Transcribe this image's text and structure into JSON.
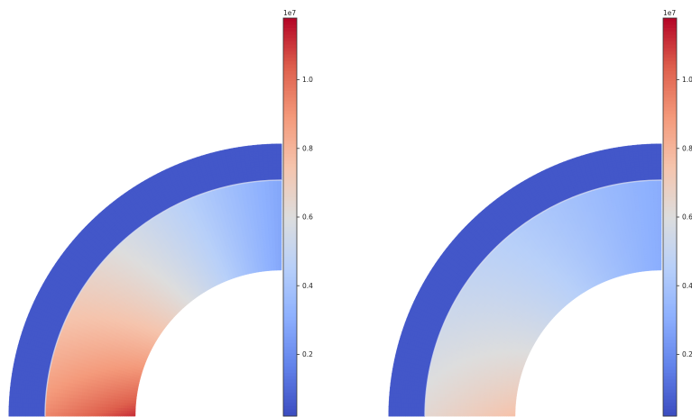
{
  "chart_data": [
    {
      "type": "heatmap",
      "shape": "quarter-annulus",
      "colormap": "coolwarm",
      "colorbar": {
        "exponent_label": "1e7",
        "ticks": [
          "0.2",
          "0.4",
          "0.6",
          "0.8",
          "1.0"
        ],
        "tick_values": [
          0.2,
          0.4,
          0.6,
          0.8,
          1.0
        ],
        "range": [
          0.02,
          1.18
        ]
      },
      "regions": {
        "outer_layer_value": 0.05,
        "inner_layer": {
          "max_at_bottom_inner": 1.12,
          "top_right_value": 0.28
        }
      }
    },
    {
      "type": "heatmap",
      "shape": "quarter-annulus",
      "colormap": "coolwarm",
      "colorbar": {
        "exponent_label": "1e7",
        "ticks": [
          "0.2",
          "0.4",
          "0.6",
          "0.8",
          "1.0"
        ],
        "tick_values": [
          0.2,
          0.4,
          0.6,
          0.8,
          1.0
        ],
        "range": [
          0.02,
          1.18
        ]
      },
      "regions": {
        "outer_layer_value": 0.05,
        "inner_layer": {
          "max_at_bottom_inner": 0.76,
          "top_right_value": 0.3
        }
      }
    }
  ]
}
